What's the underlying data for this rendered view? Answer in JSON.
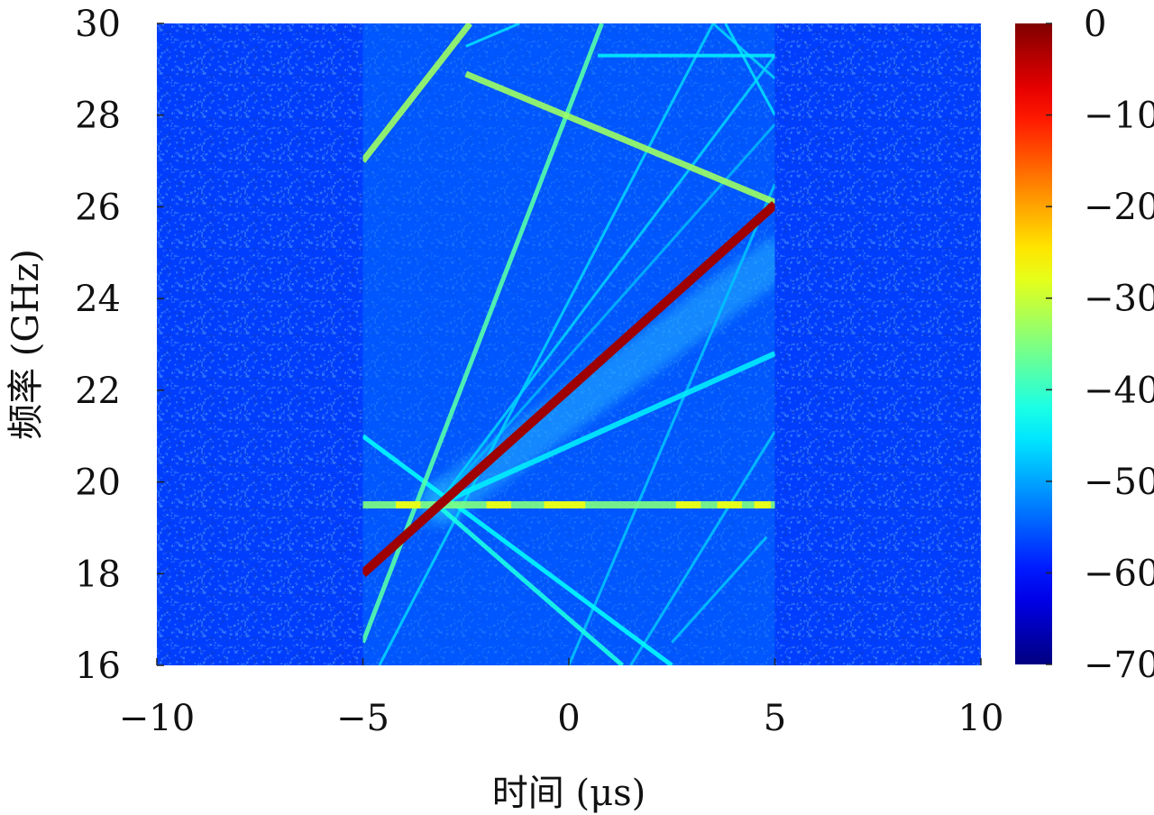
{
  "chart_data": {
    "type": "heatmap",
    "title": "",
    "xlabel": "时间 (μs)",
    "ylabel": "频率 (GHz)",
    "xlim": [
      -10,
      10
    ],
    "ylim": [
      16,
      30
    ],
    "xticks": [
      "−10",
      "−5",
      "0",
      "5",
      "10"
    ],
    "xtick_values": [
      -10,
      -5,
      0,
      5,
      10
    ],
    "yticks": [
      "16",
      "18",
      "20",
      "22",
      "24",
      "26",
      "28",
      "30"
    ],
    "ytick_values": [
      16,
      18,
      20,
      22,
      24,
      26,
      28,
      30
    ],
    "colorbar": {
      "range": [
        -70,
        0
      ],
      "ticks": [
        "0",
        "−10",
        "−20",
        "−30",
        "−40",
        "−50",
        "−60",
        "−70"
      ],
      "tick_values": [
        0,
        -10,
        -20,
        -30,
        -40,
        -50,
        -60,
        -70
      ],
      "colormap": "jet"
    },
    "signal_window": {
      "t_start": -5,
      "t_end": 5
    },
    "noise_floor_level": -57,
    "window_floor_level": -54,
    "lines": [
      {
        "t0": -5,
        "f0": 18,
        "t1": 5,
        "f1": 26.05,
        "level": -2,
        "width": 10
      },
      {
        "t0": -2.5,
        "f0": 28.9,
        "t1": 5,
        "f1": 26.1,
        "level": -33,
        "width": 7
      },
      {
        "t0": -5,
        "f0": 27,
        "t1": -2.4,
        "f1": 30,
        "level": -33,
        "width": 7
      },
      {
        "t0": -5,
        "f0": 19.5,
        "t1": 5,
        "f1": 19.5,
        "level": -35,
        "width": 8
      },
      {
        "t0": -5,
        "f0": 16.5,
        "t1": 0.8,
        "f1": 30,
        "level": -38,
        "width": 5
      },
      {
        "t0": -3.2,
        "f0": 19.5,
        "t1": 5,
        "f1": 22.8,
        "level": -45,
        "width": 6
      },
      {
        "t0": -5,
        "f0": 21,
        "t1": 2.5,
        "f1": 16,
        "level": -44,
        "width": 5
      },
      {
        "t0": -3.2,
        "f0": 19.5,
        "t1": 1.3,
        "f1": 16,
        "level": -42,
        "width": 5
      },
      {
        "t0": -3.2,
        "f0": 19.5,
        "t1": 5,
        "f1": 29.3,
        "level": -47,
        "width": 3
      },
      {
        "t0": -4.6,
        "f0": 16,
        "t1": 3.5,
        "f1": 30,
        "level": -47,
        "width": 3
      },
      {
        "t0": 0,
        "f0": 16,
        "t1": 5,
        "f1": 26.5,
        "level": -48,
        "width": 3
      },
      {
        "t0": 0.7,
        "f0": 29.3,
        "t1": 5,
        "f1": 29.3,
        "level": -45,
        "width": 4
      },
      {
        "t0": 3.8,
        "f0": 30,
        "t1": 5,
        "f1": 28,
        "level": -46,
        "width": 3
      },
      {
        "t0": 3.5,
        "f0": 30,
        "t1": 5,
        "f1": 28.8,
        "level": -47,
        "width": 3
      },
      {
        "t0": 1.5,
        "f0": 16,
        "t1": 5,
        "f1": 21.1,
        "level": -48,
        "width": 3
      },
      {
        "t0": 2.5,
        "f0": 16.5,
        "t1": 4.8,
        "f1": 18.8,
        "level": -48,
        "width": 3
      },
      {
        "t0": -2.5,
        "f0": 29.5,
        "t1": -1.2,
        "f1": 30,
        "level": -46,
        "width": 3
      },
      {
        "t0": -3.2,
        "f0": 19.5,
        "t1": 5,
        "f1": 27.8,
        "level": -49,
        "width": 3
      }
    ]
  }
}
